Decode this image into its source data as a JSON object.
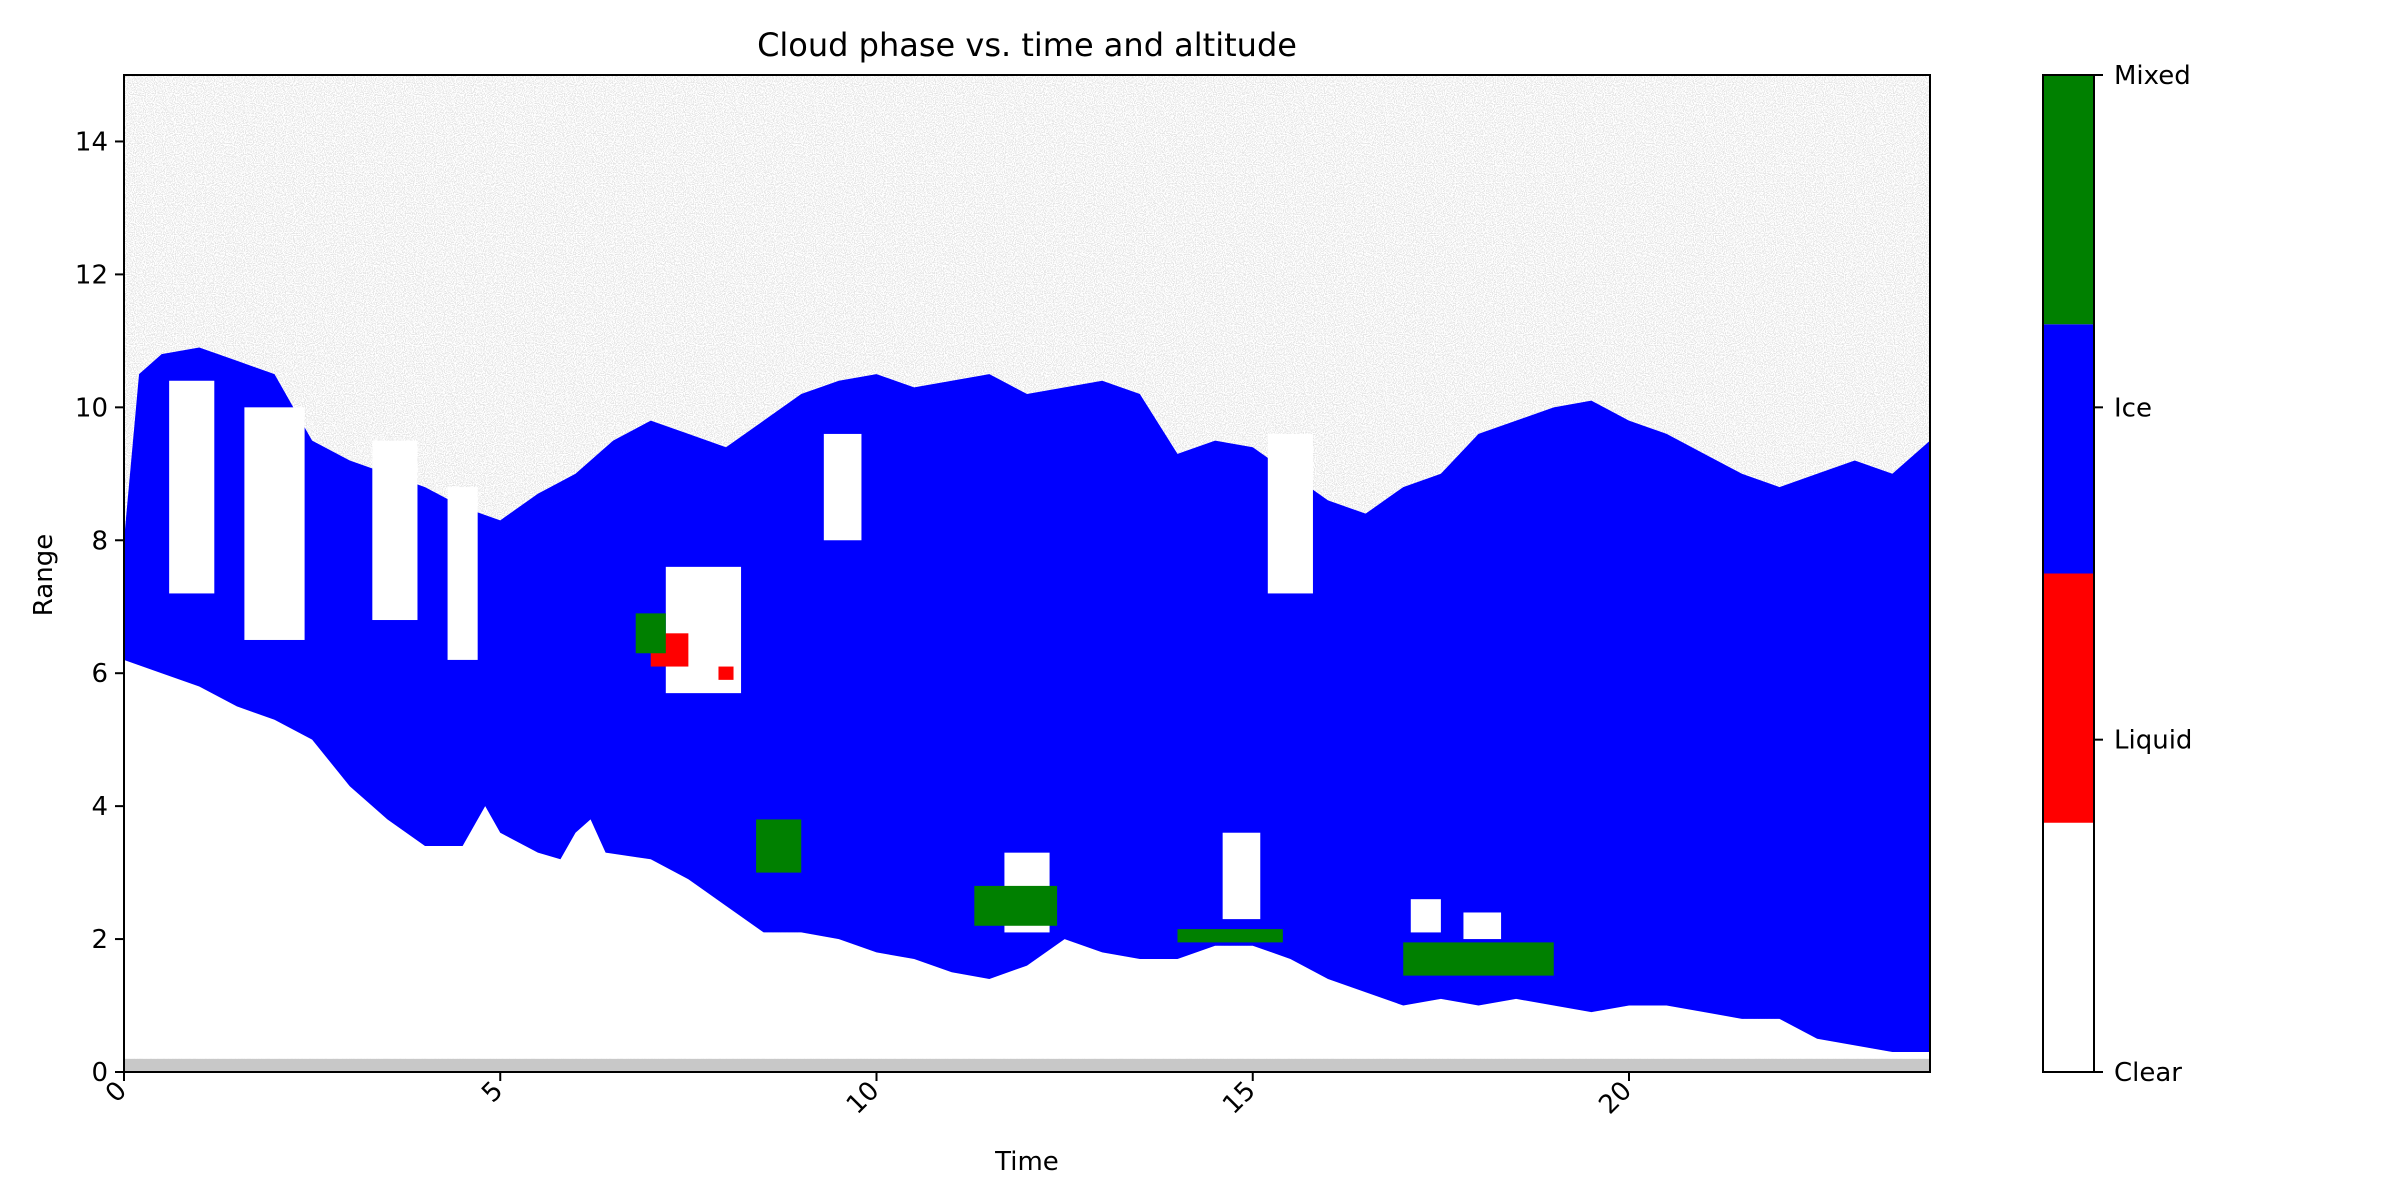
{
  "chart_data": {
    "type": "heatmap",
    "title": "Cloud phase vs. time and altitude",
    "xlabel": "Time",
    "ylabel": "Range",
    "xlim": [
      0,
      24
    ],
    "ylim": [
      0,
      15
    ],
    "x_ticks": [
      0,
      5,
      10,
      15,
      20
    ],
    "y_ticks": [
      0,
      2,
      4,
      6,
      8,
      10,
      12,
      14
    ],
    "grid": false,
    "categories": [
      "Clear",
      "Liquid",
      "Ice",
      "Mixed"
    ],
    "category_colors": [
      "#ffffff",
      "#ff0000",
      "#0000ff",
      "#008000"
    ],
    "noise_color": "#c8c8c8",
    "cloud_base": [
      [
        0,
        6.2
      ],
      [
        0.5,
        6.0
      ],
      [
        1,
        5.8
      ],
      [
        1.5,
        5.5
      ],
      [
        2,
        5.3
      ],
      [
        2.5,
        5.0
      ],
      [
        3,
        4.3
      ],
      [
        3.5,
        3.8
      ],
      [
        4,
        3.4
      ],
      [
        4.5,
        3.4
      ],
      [
        4.8,
        4.0
      ],
      [
        5,
        3.6
      ],
      [
        5.5,
        3.3
      ],
      [
        5.8,
        3.2
      ],
      [
        6,
        3.6
      ],
      [
        6.2,
        3.8
      ],
      [
        6.4,
        3.3
      ],
      [
        7,
        3.2
      ],
      [
        7.5,
        2.9
      ],
      [
        8,
        2.5
      ],
      [
        8.5,
        2.1
      ],
      [
        9,
        2.1
      ],
      [
        9.5,
        2.0
      ],
      [
        10,
        1.8
      ],
      [
        10.5,
        1.7
      ],
      [
        11,
        1.5
      ],
      [
        11.5,
        1.4
      ],
      [
        12,
        1.6
      ],
      [
        12.5,
        2.0
      ],
      [
        13,
        1.8
      ],
      [
        13.5,
        1.7
      ],
      [
        14,
        1.7
      ],
      [
        14.5,
        1.9
      ],
      [
        15,
        1.9
      ],
      [
        15.5,
        1.7
      ],
      [
        16,
        1.4
      ],
      [
        16.5,
        1.2
      ],
      [
        17,
        1.0
      ],
      [
        17.5,
        1.1
      ],
      [
        18,
        1.0
      ],
      [
        18.5,
        1.1
      ],
      [
        19,
        1.0
      ],
      [
        19.5,
        0.9
      ],
      [
        20,
        1.0
      ],
      [
        20.5,
        1.0
      ],
      [
        21,
        0.9
      ],
      [
        21.5,
        0.8
      ],
      [
        22,
        0.8
      ],
      [
        22.5,
        0.5
      ],
      [
        23,
        0.4
      ],
      [
        23.5,
        0.3
      ],
      [
        24,
        0.3
      ]
    ],
    "cloud_top": [
      [
        0,
        8.0
      ],
      [
        0.2,
        10.5
      ],
      [
        0.5,
        10.8
      ],
      [
        1,
        10.9
      ],
      [
        1.5,
        10.7
      ],
      [
        2,
        10.5
      ],
      [
        2.5,
        9.5
      ],
      [
        3,
        9.2
      ],
      [
        3.5,
        9.0
      ],
      [
        4,
        8.8
      ],
      [
        4.5,
        8.5
      ],
      [
        5,
        8.3
      ],
      [
        5.5,
        8.7
      ],
      [
        6,
        9.0
      ],
      [
        6.5,
        9.5
      ],
      [
        7,
        9.8
      ],
      [
        7.5,
        9.6
      ],
      [
        8,
        9.4
      ],
      [
        8.5,
        9.8
      ],
      [
        9,
        10.2
      ],
      [
        9.5,
        10.4
      ],
      [
        10,
        10.5
      ],
      [
        10.5,
        10.3
      ],
      [
        11,
        10.4
      ],
      [
        11.5,
        10.5
      ],
      [
        12,
        10.2
      ],
      [
        12.5,
        10.3
      ],
      [
        13,
        10.4
      ],
      [
        13.5,
        10.2
      ],
      [
        14,
        9.3
      ],
      [
        14.5,
        9.5
      ],
      [
        15,
        9.4
      ],
      [
        15.5,
        9.0
      ],
      [
        16,
        8.6
      ],
      [
        16.5,
        8.4
      ],
      [
        17,
        8.8
      ],
      [
        17.5,
        9.0
      ],
      [
        18,
        9.6
      ],
      [
        18.5,
        9.8
      ],
      [
        19,
        10.0
      ],
      [
        19.5,
        10.1
      ],
      [
        20,
        9.8
      ],
      [
        20.5,
        9.6
      ],
      [
        21,
        9.3
      ],
      [
        21.5,
        9.0
      ],
      [
        22,
        8.8
      ],
      [
        22.5,
        9.0
      ],
      [
        23,
        9.2
      ],
      [
        23.5,
        9.0
      ],
      [
        24,
        9.5
      ]
    ],
    "clear_gaps": [
      {
        "x": [
          0.6,
          1.2
        ],
        "y": [
          7.2,
          10.4
        ]
      },
      {
        "x": [
          1.6,
          2.4
        ],
        "y": [
          6.5,
          10.0
        ]
      },
      {
        "x": [
          3.3,
          3.9
        ],
        "y": [
          6.8,
          9.5
        ]
      },
      {
        "x": [
          4.3,
          4.7
        ],
        "y": [
          6.2,
          8.8
        ]
      },
      {
        "x": [
          7.2,
          8.2
        ],
        "y": [
          5.7,
          7.6
        ]
      },
      {
        "x": [
          9.3,
          9.8
        ],
        "y": [
          8.0,
          9.6
        ]
      },
      {
        "x": [
          11.7,
          12.3
        ],
        "y": [
          2.1,
          3.3
        ]
      },
      {
        "x": [
          14.6,
          15.1
        ],
        "y": [
          2.3,
          3.6
        ]
      },
      {
        "x": [
          15.2,
          15.8
        ],
        "y": [
          7.2,
          9.6
        ]
      },
      {
        "x": [
          17.1,
          17.5
        ],
        "y": [
          2.1,
          2.6
        ]
      },
      {
        "x": [
          17.8,
          18.3
        ],
        "y": [
          2.0,
          2.4
        ]
      }
    ],
    "liquid_patches": [
      {
        "x": [
          7.0,
          7.5
        ],
        "y": [
          6.1,
          6.6
        ]
      },
      {
        "x": [
          7.9,
          8.1
        ],
        "y": [
          5.9,
          6.1
        ]
      }
    ],
    "mixed_patches": [
      {
        "x": [
          6.8,
          7.2
        ],
        "y": [
          6.3,
          6.9
        ]
      },
      {
        "x": [
          8.4,
          9.0
        ],
        "y": [
          3.0,
          3.8
        ]
      },
      {
        "x": [
          11.3,
          12.4
        ],
        "y": [
          2.2,
          2.8
        ]
      },
      {
        "x": [
          14.0,
          15.4
        ],
        "y": [
          1.95,
          2.15
        ]
      },
      {
        "x": [
          17.0,
          19.0
        ],
        "y": [
          1.45,
          1.95
        ]
      }
    ],
    "surface_band": {
      "y": [
        0,
        0.2
      ]
    }
  }
}
